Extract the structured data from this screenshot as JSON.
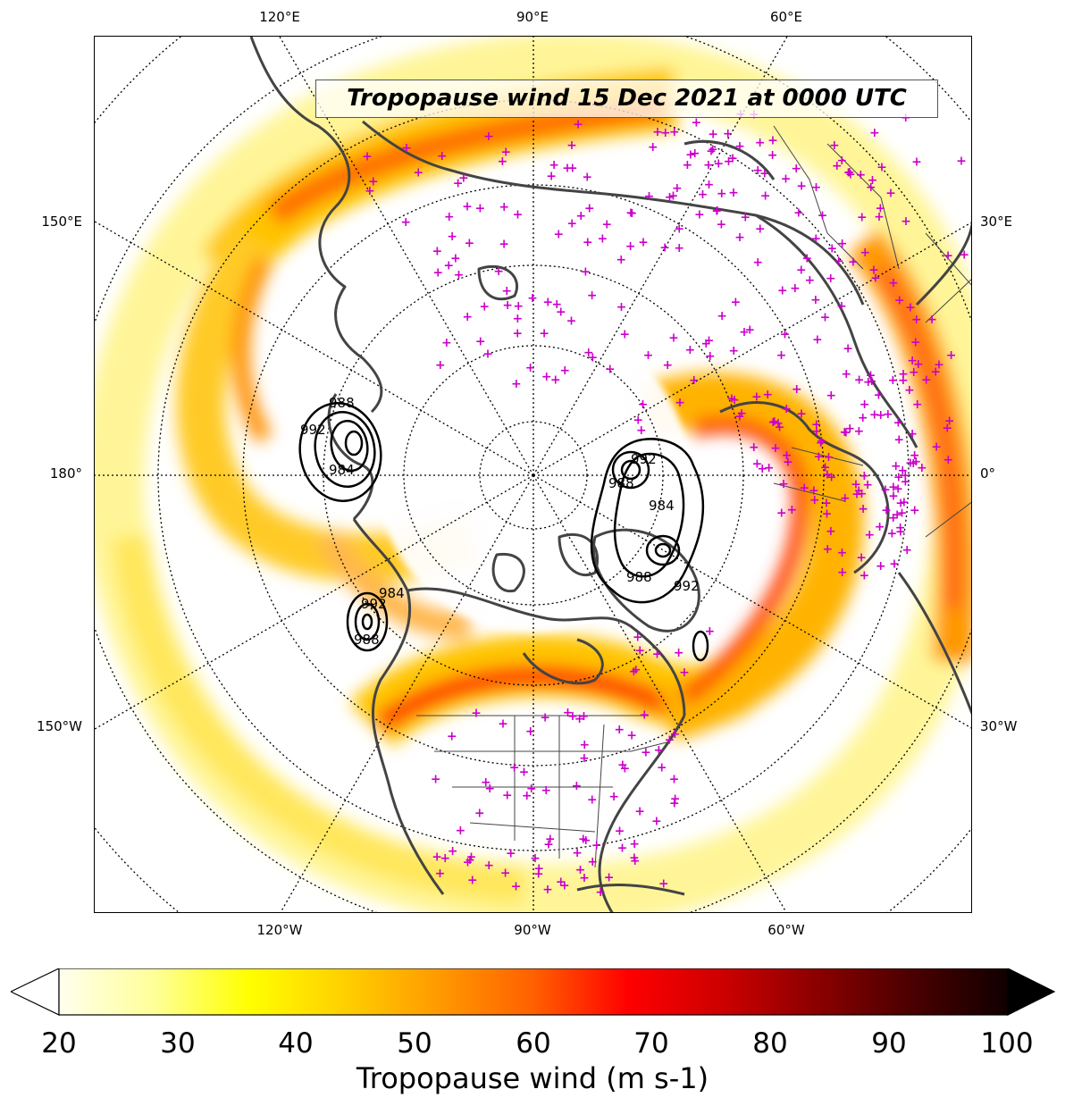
{
  "title": "Tropopause wind 15 Dec 2021 at 0000 UTC",
  "lon_labels": {
    "top": [
      "120°E",
      "90°E",
      "60°E"
    ],
    "bottom": [
      "120°W",
      "90°W",
      "60°W"
    ],
    "left": [
      "150°E",
      "180°",
      "150°W"
    ],
    "right": [
      "30°E",
      "0°",
      "30°W"
    ]
  },
  "pressure_contour_labels": [
    "992",
    "988",
    "984",
    "992",
    "988",
    "984",
    "992",
    "988",
    "984",
    "988",
    "992"
  ],
  "colorbar": {
    "label": "Tropopause wind (m s-1)",
    "min": 20,
    "max": 100,
    "ticks": [
      "20",
      "30",
      "40",
      "50",
      "60",
      "70",
      "80",
      "90",
      "100"
    ],
    "extend": "both",
    "colormap": "hot_r",
    "colors": [
      "#ffffee",
      "#ffff99",
      "#ffff00",
      "#ffd000",
      "#ff9a00",
      "#ff6000",
      "#ff0000",
      "#cc0000",
      "#8a0000",
      "#4a0000",
      "#100000"
    ]
  },
  "overlay": {
    "coastline_color": "#444444",
    "marker_symbol": "+",
    "marker_color": "#cc00cc",
    "graticule_style": "dotted"
  }
}
